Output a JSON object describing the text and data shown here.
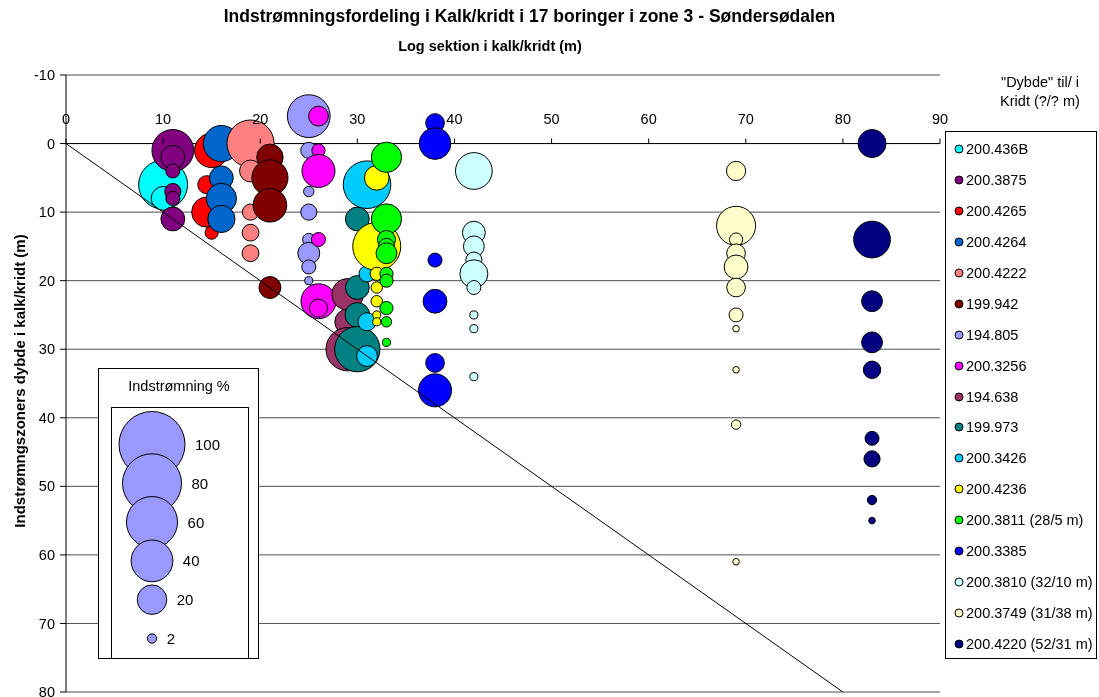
{
  "chart_data": {
    "type": "bubble",
    "title": "Indstrømningsfordeling i Kalk/kridt i 17 boringer i zone 3 - Søndersødalen",
    "xlabel": "Log sektion i kalk/kridt (m)",
    "ylabel": "Indstrømngszoners dybde i kalk/kridt (m)",
    "legend_title": "\"Dybde\" til/ i Kridt (?/? m)",
    "annotations": [
      "Indstrømning %"
    ],
    "xlim": [
      0,
      90
    ],
    "xticks": [
      0,
      10,
      20,
      30,
      40,
      50,
      60,
      70,
      80,
      90
    ],
    "ylim": [
      80,
      -10
    ],
    "yticks": [
      -10,
      0,
      10,
      20,
      30,
      40,
      50,
      60,
      70,
      80
    ],
    "grid": "y",
    "legend": "right",
    "size_legend": [
      100,
      80,
      60,
      40,
      20,
      2
    ],
    "series": [
      {
        "name": "200.436B",
        "color": "#00ffff",
        "x": [
          10,
          10
        ],
        "values": [
          6,
          8
        ],
        "sizes": [
          55,
          13
        ]
      },
      {
        "name": "200.3875",
        "color": "#800080",
        "x": [
          11,
          11,
          11,
          11,
          11,
          11
        ],
        "values": [
          1,
          2,
          4,
          7,
          8,
          11
        ],
        "sizes": [
          40,
          13,
          4.5,
          6,
          4.5,
          13
        ]
      },
      {
        "name": "200.4265",
        "color": "#ff0000",
        "x": [
          15,
          14.5,
          14.5,
          15
        ],
        "values": [
          1,
          6,
          10,
          13
        ],
        "sizes": [
          27,
          7.5,
          21,
          4
        ]
      },
      {
        "name": "200.4264",
        "color": "#0066cc",
        "x": [
          16,
          16,
          16,
          16
        ],
        "values": [
          0,
          5,
          8,
          11
        ],
        "sizes": [
          30,
          13,
          21,
          17
        ]
      },
      {
        "name": "200.4222",
        "color": "#ff8080",
        "x": [
          19,
          19,
          19,
          19,
          19
        ],
        "values": [
          0,
          4,
          10,
          13,
          16
        ],
        "sizes": [
          51,
          11,
          6,
          6.5,
          6.5
        ]
      },
      {
        "name": "199.942",
        "color": "#800000",
        "x": [
          21,
          21,
          21,
          21
        ],
        "values": [
          2,
          5,
          9,
          21
        ],
        "sizes": [
          16,
          30,
          26,
          11
        ]
      },
      {
        "name": "194.805",
        "color": "#9999ff",
        "x": [
          25,
          25,
          25,
          25,
          25,
          25,
          25,
          25
        ],
        "values": [
          -4,
          1,
          7,
          10,
          14,
          16,
          18,
          20
        ],
        "sizes": [
          42,
          6,
          2.5,
          6,
          3.5,
          11,
          4.5,
          1.5
        ]
      },
      {
        "name": "200.3256",
        "color": "#ff00ff",
        "x": [
          26,
          26,
          26,
          26,
          26,
          26
        ],
        "values": [
          -4,
          1,
          4,
          14,
          23,
          24
        ],
        "sizes": [
          9,
          4,
          25,
          4.5,
          28,
          7.5
        ]
      },
      {
        "name": "194.638",
        "color": "#993366",
        "x": [
          29,
          29,
          29
        ],
        "values": [
          22,
          26,
          30
        ],
        "sizes": [
          23,
          15,
          43
        ]
      },
      {
        "name": "199.973",
        "color": "#008080",
        "x": [
          30,
          30,
          30,
          30
        ],
        "values": [
          11,
          21,
          25,
          30
        ],
        "sizes": [
          13,
          13,
          14,
          47
        ]
      },
      {
        "name": "200.3426",
        "color": "#00ccff",
        "x": [
          31,
          31,
          31,
          31
        ],
        "values": [
          6,
          19,
          26,
          31
        ],
        "sizes": [
          52,
          6,
          7.5,
          10
        ]
      },
      {
        "name": "200.4236",
        "color": "#ffff00",
        "x": [
          32,
          32,
          32,
          32,
          32,
          32,
          32
        ],
        "values": [
          5,
          15,
          19,
          21,
          23,
          25,
          26
        ],
        "sizes": [
          14,
          53,
          4,
          3,
          3,
          1.5,
          1.5
        ]
      },
      {
        "name": "200.3811 (28/5 m)",
        "color": "#00ff00",
        "x": [
          33,
          33,
          33,
          33,
          33,
          33,
          33,
          33,
          33,
          33
        ],
        "values": [
          2,
          11,
          14,
          15,
          16,
          19,
          20,
          24,
          26,
          29
        ],
        "sizes": [
          21,
          21,
          7.5,
          6,
          10,
          4,
          4,
          4,
          2.5,
          1.5
        ]
      },
      {
        "name": "200.3385",
        "color": "#0000ff",
        "x": [
          38,
          38,
          38,
          38,
          38,
          38
        ],
        "values": [
          -3,
          0,
          17,
          23,
          32,
          36
        ],
        "sizes": [
          8,
          23,
          4.5,
          13,
          8,
          25
        ]
      },
      {
        "name": "200.3810 (32/10 m)",
        "color": "#ccffff",
        "x": [
          42,
          42,
          42,
          42,
          42,
          42,
          42,
          42,
          42
        ],
        "values": [
          4,
          13,
          15,
          17,
          19,
          21,
          25,
          27,
          34
        ],
        "sizes": [
          31,
          12,
          10,
          6,
          18,
          4.5,
          1.5,
          1.5,
          1.5
        ]
      },
      {
        "name": "200.3749 (31/38 m)",
        "color": "#ffffcc",
        "x": [
          69,
          69,
          69,
          69,
          69,
          69,
          69,
          69,
          69,
          69,
          69
        ],
        "values": [
          4,
          12,
          14,
          16,
          18,
          21,
          25,
          27,
          33,
          41,
          61
        ],
        "sizes": [
          8.5,
          35,
          4,
          8,
          13,
          8,
          4.5,
          1,
          1,
          2,
          1
        ]
      },
      {
        "name": "200.4220 (52/31 m)",
        "color": "#000080",
        "x": [
          83,
          83,
          83,
          83,
          83,
          83,
          83,
          83,
          83
        ],
        "values": [
          0,
          14,
          23,
          29,
          33,
          43,
          46,
          52,
          55
        ],
        "sizes": [
          18,
          31,
          10,
          10,
          7,
          4.5,
          6,
          2,
          1
        ]
      },
      {
        "type": "line",
        "color": "#000000",
        "x": [
          0,
          80
        ],
        "values": [
          0,
          80
        ]
      }
    ]
  }
}
